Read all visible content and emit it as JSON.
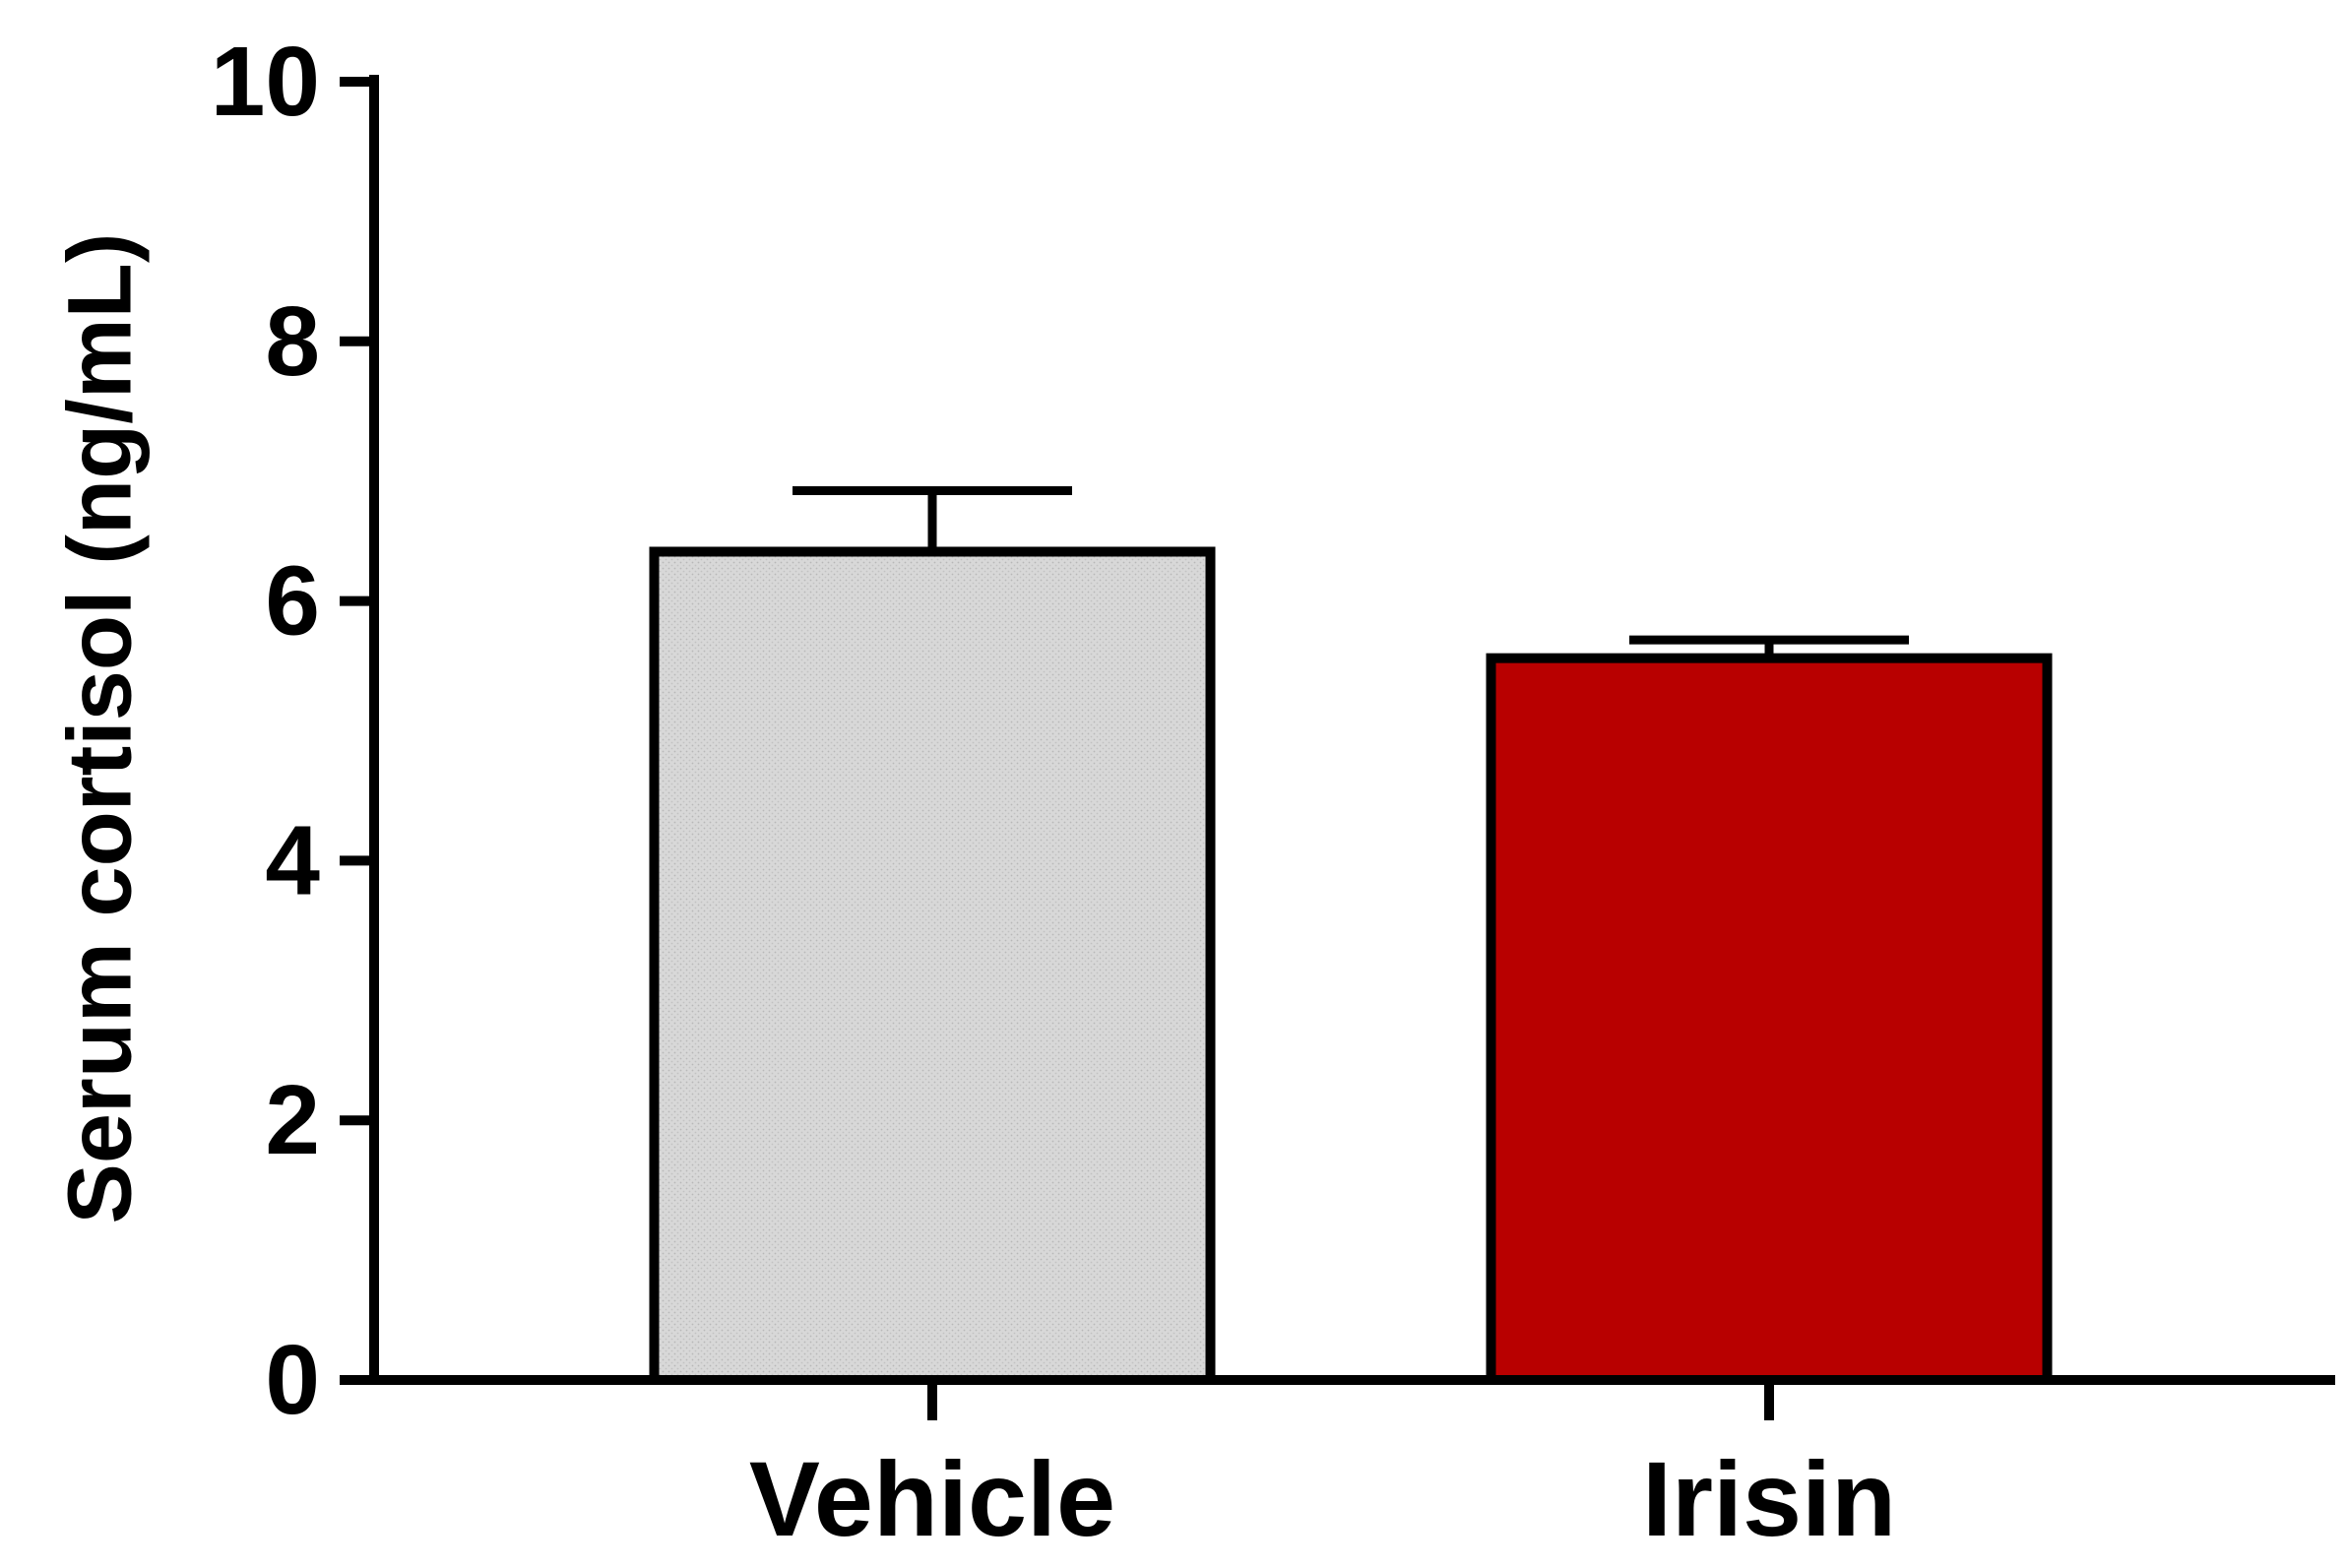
{
  "chart_data": {
    "type": "bar",
    "ylabel": "Serum cortisol (ng/mL)",
    "xlabel": "",
    "ylim": [
      0,
      10
    ],
    "yticks": [
      0,
      2,
      4,
      6,
      8,
      10
    ],
    "yticks_labels": [
      "0",
      "2",
      "4",
      "6",
      "8",
      "10"
    ],
    "categories": [
      "Vehicle",
      "Irisin"
    ],
    "values": [
      6.38,
      5.56
    ],
    "errors": [
      0.47,
      0.14
    ],
    "colors": [
      "#d6d6d6",
      "#b80000"
    ],
    "outline_color": "#000000",
    "grid": false,
    "legend": "none"
  }
}
